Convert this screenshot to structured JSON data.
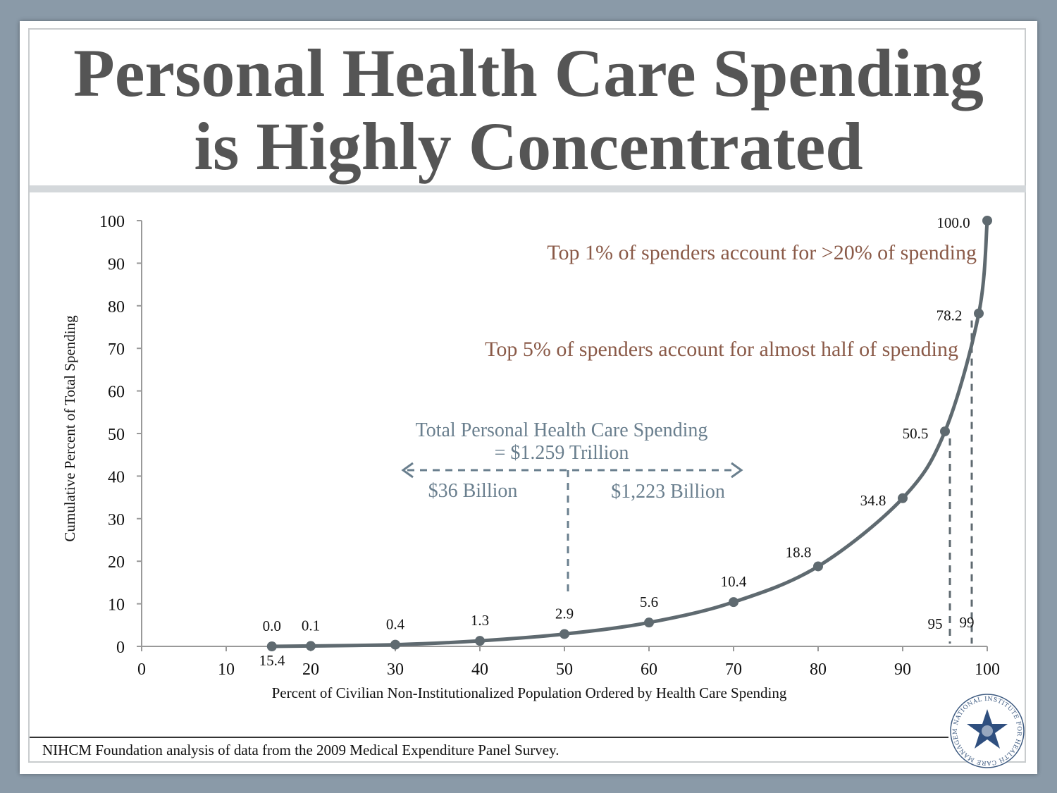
{
  "slide": {
    "title_line1": "Personal Health Care Spending",
    "title_line2": "is Highly Concentrated",
    "footer": "NIHCM Foundation analysis of data from the 2009 Medical Expenditure Panel Survey.",
    "logo_text": "NATIONAL INSTITUTE FOR HEALTH CARE MANAGEMENT"
  },
  "chart_data": {
    "type": "line",
    "xlabel": "Percent of Civilian Non-Institutionalized Population Ordered by Health Care Spending",
    "ylabel": "Cumulative Percent of Total Spending",
    "xlim": [
      0,
      100
    ],
    "ylim": [
      0,
      100
    ],
    "x_ticks": [
      0,
      10,
      20,
      30,
      40,
      50,
      60,
      70,
      80,
      90,
      100
    ],
    "y_ticks": [
      0,
      10,
      20,
      30,
      40,
      50,
      60,
      70,
      80,
      90,
      100
    ],
    "grid": false,
    "line_color": "#5f6a70",
    "points": [
      {
        "x": 15.4,
        "y": 0.0,
        "label": "0.0"
      },
      {
        "x": 20,
        "y": 0.1,
        "label": "0.1"
      },
      {
        "x": 30,
        "y": 0.4,
        "label": "0.4"
      },
      {
        "x": 40,
        "y": 1.3,
        "label": "1.3"
      },
      {
        "x": 50,
        "y": 2.9,
        "label": "2.9"
      },
      {
        "x": 60,
        "y": 5.6,
        "label": "5.6"
      },
      {
        "x": 70,
        "y": 10.4,
        "label": "10.4"
      },
      {
        "x": 80,
        "y": 18.8,
        "label": "18.8"
      },
      {
        "x": 90,
        "y": 34.8,
        "label": "34.8"
      },
      {
        "x": 95,
        "y": 50.5,
        "label": "50.5"
      },
      {
        "x": 99,
        "y": 78.2,
        "label": "78.2"
      },
      {
        "x": 100,
        "y": 100.0,
        "label": "100.0"
      }
    ],
    "marker_labels": {
      "p15": "15.4",
      "p95": "95",
      "p99": "99"
    },
    "annotations": {
      "top1": "Top 1% of spenders account for >20% of spending",
      "top5": "Top 5% of spenders account for almost half of spending",
      "total_line1": "Total Personal Health Care Spending",
      "total_line2": "= $1.259 Trillion",
      "left_amount": "$36 Billion",
      "right_amount": "$1,223 Billion"
    },
    "colors": {
      "annotation_brown": "#8a5a48",
      "annotation_gray": "#6a7f8e",
      "arrow_gray": "#6a7f8e"
    }
  }
}
